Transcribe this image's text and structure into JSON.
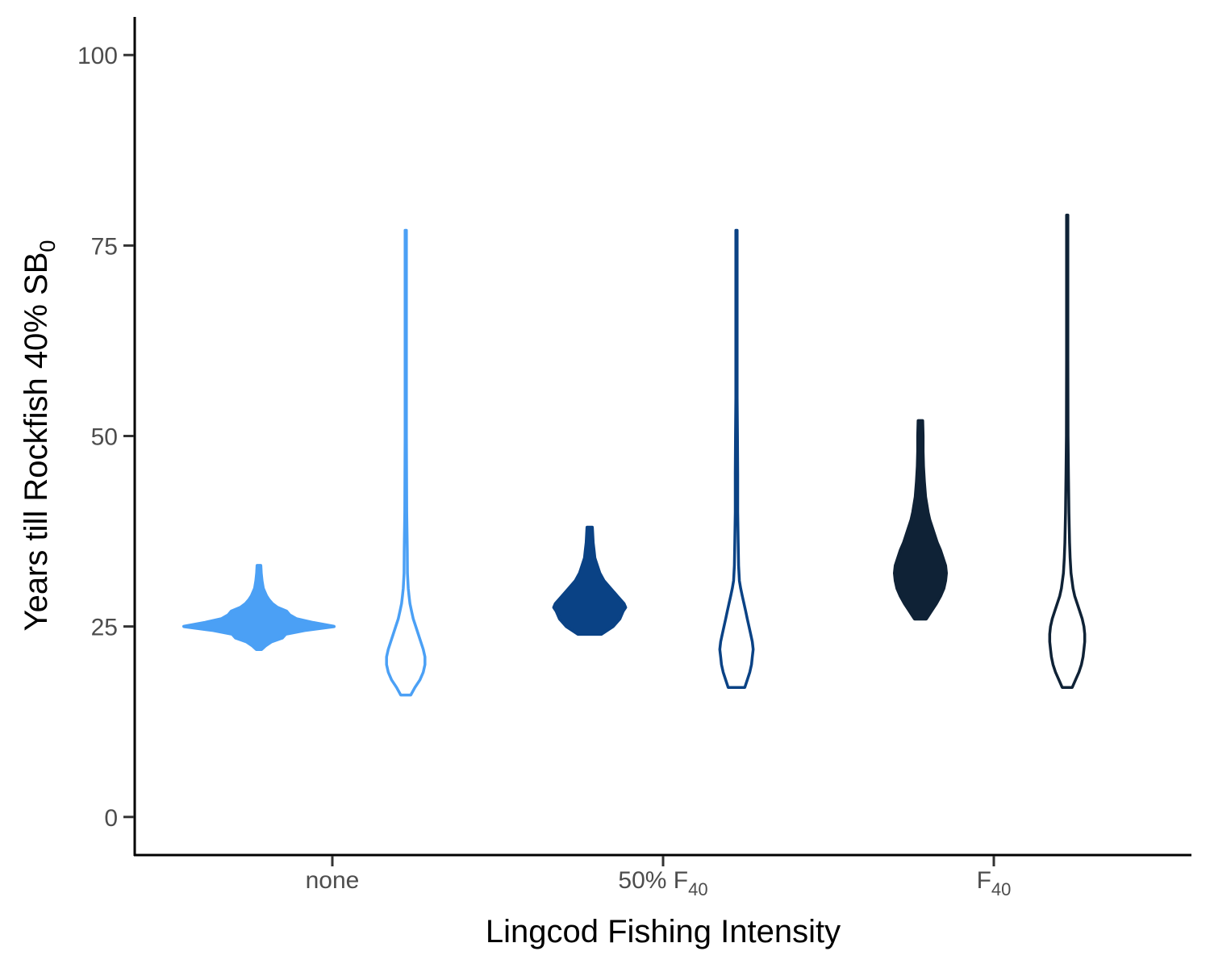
{
  "chart_data": {
    "type": "violin",
    "title": "",
    "xlabel": "Lingcod Fishing Intensity",
    "ylabel": {
      "main": "Years till Rockfish 40% SB",
      "sub": "0"
    },
    "ylim": [
      -5,
      105
    ],
    "yticks": [
      0,
      25,
      50,
      75,
      100
    ],
    "categories": [
      {
        "label": "none",
        "sub": ""
      },
      {
        "label": "50% F",
        "sub": "40"
      },
      {
        "label": "F",
        "sub": "40"
      }
    ],
    "grid": false,
    "legend": "none",
    "violins": [
      {
        "category": 0,
        "side": "left",
        "filled": true,
        "color": "#4BA0F5",
        "profile": [
          [
            22,
            0.3
          ],
          [
            22.5,
            0.8
          ],
          [
            23,
            1.5
          ],
          [
            23.5,
            2.8
          ],
          [
            24,
            3.2
          ],
          [
            24.5,
            5.5
          ],
          [
            25,
            9.0
          ],
          [
            25.5,
            6.5
          ],
          [
            26,
            4.5
          ],
          [
            26.5,
            3.7
          ],
          [
            27,
            3.3
          ],
          [
            27.5,
            2.2
          ],
          [
            28,
            1.6
          ],
          [
            28.5,
            1.2
          ],
          [
            29,
            0.9
          ],
          [
            30,
            0.5
          ],
          [
            31,
            0.35
          ],
          [
            32,
            0.25
          ],
          [
            33,
            0.2
          ]
        ]
      },
      {
        "category": 0,
        "side": "right",
        "filled": false,
        "color": "#4BA0F5",
        "profile": [
          [
            16,
            0.6
          ],
          [
            17,
            1.1
          ],
          [
            18,
            1.7
          ],
          [
            19,
            2.1
          ],
          [
            20,
            2.3
          ],
          [
            21,
            2.3
          ],
          [
            22,
            2.1
          ],
          [
            23,
            1.8
          ],
          [
            24,
            1.5
          ],
          [
            25,
            1.2
          ],
          [
            26,
            0.9
          ],
          [
            27,
            0.7
          ],
          [
            28,
            0.5
          ],
          [
            29,
            0.4
          ],
          [
            30,
            0.3
          ],
          [
            32,
            0.2
          ],
          [
            35,
            0.18
          ],
          [
            40,
            0.12
          ],
          [
            50,
            0.08
          ],
          [
            60,
            0.08
          ],
          [
            77,
            0.08
          ]
        ]
      },
      {
        "category": 1,
        "side": "left",
        "filled": true,
        "color": "#0A4285",
        "profile": [
          [
            24,
            1.4
          ],
          [
            25,
            2.8
          ],
          [
            26,
            3.6
          ],
          [
            27,
            4.0
          ],
          [
            27.5,
            4.3
          ],
          [
            28,
            4.1
          ],
          [
            29,
            3.3
          ],
          [
            30,
            2.5
          ],
          [
            31,
            1.7
          ],
          [
            32,
            1.2
          ],
          [
            33,
            0.9
          ],
          [
            34,
            0.6
          ],
          [
            35,
            0.5
          ],
          [
            36,
            0.4
          ],
          [
            37,
            0.35
          ],
          [
            38,
            0.3
          ]
        ]
      },
      {
        "category": 1,
        "side": "right",
        "filled": false,
        "color": "#0A4285",
        "profile": [
          [
            17,
            1.0
          ],
          [
            18,
            1.3
          ],
          [
            19,
            1.6
          ],
          [
            20,
            1.8
          ],
          [
            21,
            1.9
          ],
          [
            22,
            2.0
          ],
          [
            23,
            1.9
          ],
          [
            24,
            1.7
          ],
          [
            25,
            1.5
          ],
          [
            26,
            1.3
          ],
          [
            27,
            1.1
          ],
          [
            28,
            0.9
          ],
          [
            29,
            0.7
          ],
          [
            30,
            0.5
          ],
          [
            31,
            0.35
          ],
          [
            33,
            0.25
          ],
          [
            36,
            0.2
          ],
          [
            40,
            0.15
          ],
          [
            45,
            0.15
          ],
          [
            50,
            0.12
          ],
          [
            55,
            0.08
          ],
          [
            60,
            0.08
          ],
          [
            77,
            0.08
          ]
        ]
      },
      {
        "category": 2,
        "side": "left",
        "filled": true,
        "color": "#0F2236",
        "profile": [
          [
            26,
            0.7
          ],
          [
            27,
            1.3
          ],
          [
            28,
            1.9
          ],
          [
            29,
            2.4
          ],
          [
            30,
            2.8
          ],
          [
            31,
            3.0
          ],
          [
            32,
            3.1
          ],
          [
            33,
            3.0
          ],
          [
            34,
            2.7
          ],
          [
            35,
            2.4
          ],
          [
            36,
            2.0
          ],
          [
            37,
            1.7
          ],
          [
            38,
            1.4
          ],
          [
            39,
            1.1
          ],
          [
            40,
            0.9
          ],
          [
            42,
            0.6
          ],
          [
            44,
            0.45
          ],
          [
            46,
            0.35
          ],
          [
            48,
            0.3
          ],
          [
            50,
            0.3
          ],
          [
            52,
            0.25
          ]
        ]
      },
      {
        "category": 2,
        "side": "right",
        "filled": false,
        "color": "#0F2236",
        "profile": [
          [
            17,
            0.6
          ],
          [
            18,
            1.0
          ],
          [
            19,
            1.4
          ],
          [
            20,
            1.7
          ],
          [
            21,
            1.9
          ],
          [
            22,
            2.0
          ],
          [
            23,
            2.1
          ],
          [
            24,
            2.1
          ],
          [
            25,
            2.0
          ],
          [
            26,
            1.8
          ],
          [
            27,
            1.5
          ],
          [
            28,
            1.2
          ],
          [
            29,
            0.9
          ],
          [
            30,
            0.7
          ],
          [
            32,
            0.45
          ],
          [
            34,
            0.35
          ],
          [
            36,
            0.28
          ],
          [
            40,
            0.2
          ],
          [
            45,
            0.15
          ],
          [
            50,
            0.1
          ],
          [
            60,
            0.08
          ],
          [
            79,
            0.08
          ]
        ]
      }
    ]
  }
}
